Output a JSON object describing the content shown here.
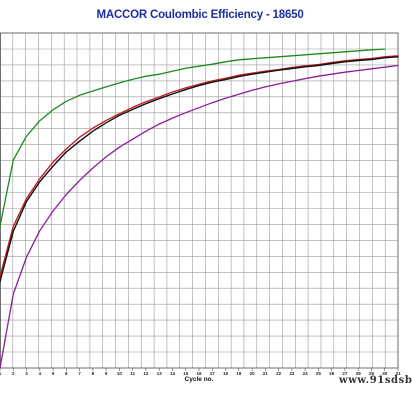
{
  "chart_data": {
    "type": "line",
    "title": "MACCOR Coulombic Efficiency - 18650",
    "xlabel": "Cycle no.",
    "ylabel": "",
    "x_tick_labels": [
      "1",
      "2",
      "3",
      "4",
      "5",
      "6",
      "7",
      "8",
      "9",
      "10",
      "11",
      "12",
      "13",
      "14",
      "15",
      "16",
      "17",
      "18",
      "19",
      "20",
      "21",
      "22",
      "23",
      "24",
      "25",
      "26",
      "27",
      "28",
      "29",
      "30",
      "31"
    ],
    "xlim": [
      1,
      31
    ],
    "ylim": [
      0,
      1
    ],
    "y_tick_labels_shown": false,
    "grid": true,
    "legend": "none",
    "series": [
      {
        "color": "#1e8a1e",
        "points": [
          [
            1,
            0.423
          ],
          [
            2,
            0.621
          ],
          [
            3,
            0.692
          ],
          [
            4,
            0.738
          ],
          [
            5,
            0.771
          ],
          [
            6,
            0.796
          ],
          [
            7,
            0.814
          ],
          [
            8,
            0.827
          ],
          [
            9,
            0.839
          ],
          [
            10,
            0.851
          ],
          [
            11,
            0.862
          ],
          [
            12,
            0.871
          ],
          [
            13,
            0.877
          ],
          [
            14,
            0.886
          ],
          [
            15,
            0.895
          ],
          [
            16,
            0.901
          ],
          [
            17,
            0.907
          ],
          [
            18,
            0.914
          ],
          [
            19,
            0.92
          ],
          [
            20,
            0.923
          ],
          [
            21,
            0.926
          ],
          [
            22,
            0.929
          ],
          [
            23,
            0.932
          ],
          [
            24,
            0.935
          ],
          [
            25,
            0.938
          ],
          [
            26,
            0.941
          ],
          [
            27,
            0.944
          ],
          [
            28,
            0.947
          ],
          [
            29,
            0.95
          ],
          [
            30,
            0.952
          ]
        ]
      },
      {
        "color": "#c0181c",
        "points": [
          [
            1,
            0.273
          ],
          [
            2,
            0.423
          ],
          [
            3,
            0.506
          ],
          [
            4,
            0.565
          ],
          [
            5,
            0.615
          ],
          [
            6,
            0.654
          ],
          [
            7,
            0.689
          ],
          [
            8,
            0.716
          ],
          [
            9,
            0.739
          ],
          [
            10,
            0.759
          ],
          [
            11,
            0.778
          ],
          [
            12,
            0.795
          ],
          [
            13,
            0.809
          ],
          [
            14,
            0.824
          ],
          [
            15,
            0.836
          ],
          [
            16,
            0.847
          ],
          [
            17,
            0.857
          ],
          [
            18,
            0.865
          ],
          [
            19,
            0.874
          ],
          [
            20,
            0.88
          ],
          [
            21,
            0.886
          ],
          [
            22,
            0.891
          ],
          [
            23,
            0.897
          ],
          [
            24,
            0.902
          ],
          [
            25,
            0.906
          ],
          [
            26,
            0.912
          ],
          [
            27,
            0.917
          ],
          [
            28,
            0.921
          ],
          [
            29,
            0.924
          ],
          [
            30,
            0.929
          ],
          [
            31,
            0.932
          ]
        ]
      },
      {
        "color": "#111111",
        "points": [
          [
            1,
            0.258
          ],
          [
            2,
            0.408
          ],
          [
            3,
            0.497
          ],
          [
            4,
            0.556
          ],
          [
            5,
            0.603
          ],
          [
            6,
            0.645
          ],
          [
            7,
            0.677
          ],
          [
            8,
            0.707
          ],
          [
            9,
            0.732
          ],
          [
            10,
            0.754
          ],
          [
            11,
            0.772
          ],
          [
            12,
            0.789
          ],
          [
            13,
            0.804
          ],
          [
            14,
            0.818
          ],
          [
            15,
            0.831
          ],
          [
            16,
            0.843
          ],
          [
            17,
            0.853
          ],
          [
            18,
            0.861
          ],
          [
            19,
            0.87
          ],
          [
            20,
            0.877
          ],
          [
            21,
            0.883
          ],
          [
            22,
            0.889
          ],
          [
            23,
            0.894
          ],
          [
            24,
            0.899
          ],
          [
            25,
            0.903
          ],
          [
            26,
            0.909
          ],
          [
            27,
            0.914
          ],
          [
            28,
            0.918
          ],
          [
            29,
            0.921
          ],
          [
            30,
            0.926
          ],
          [
            31,
            0.929
          ]
        ]
      },
      {
        "color": "#8c1c9c",
        "points": [
          [
            1,
            0.0
          ],
          [
            2,
            0.221
          ],
          [
            3,
            0.331
          ],
          [
            4,
            0.41
          ],
          [
            5,
            0.469
          ],
          [
            6,
            0.518
          ],
          [
            7,
            0.56
          ],
          [
            8,
            0.597
          ],
          [
            9,
            0.63
          ],
          [
            10,
            0.659
          ],
          [
            11,
            0.683
          ],
          [
            12,
            0.707
          ],
          [
            13,
            0.728
          ],
          [
            14,
            0.746
          ],
          [
            15,
            0.762
          ],
          [
            16,
            0.777
          ],
          [
            17,
            0.792
          ],
          [
            18,
            0.805
          ],
          [
            19,
            0.817
          ],
          [
            20,
            0.829
          ],
          [
            21,
            0.839
          ],
          [
            22,
            0.848
          ],
          [
            23,
            0.856
          ],
          [
            24,
            0.864
          ],
          [
            25,
            0.871
          ],
          [
            26,
            0.877
          ],
          [
            27,
            0.883
          ],
          [
            28,
            0.888
          ],
          [
            29,
            0.893
          ],
          [
            30,
            0.898
          ],
          [
            31,
            0.903
          ]
        ]
      }
    ]
  },
  "watermark_text": "www.91sdsb"
}
